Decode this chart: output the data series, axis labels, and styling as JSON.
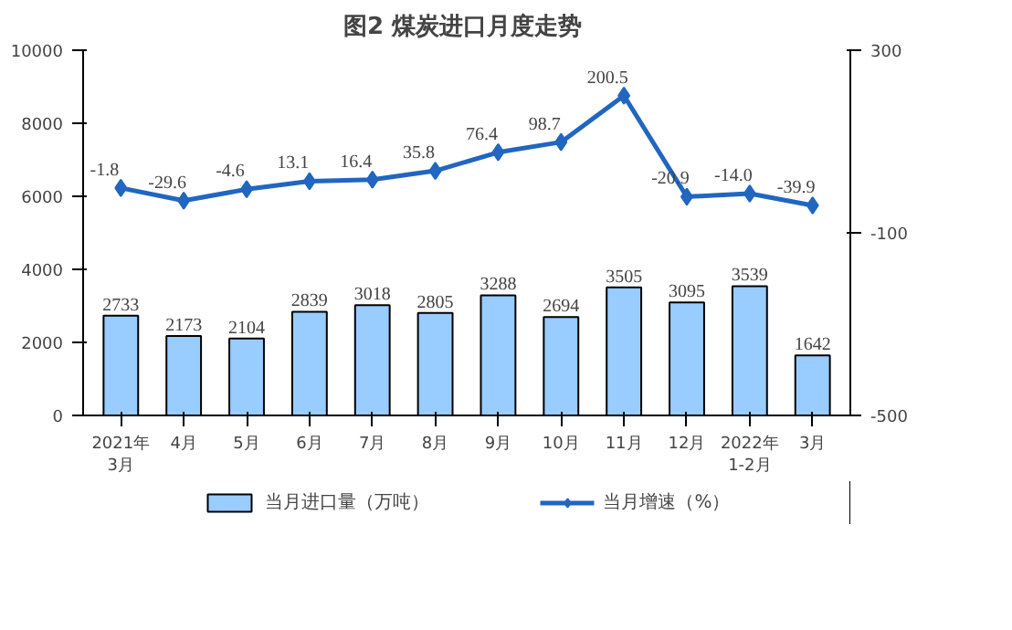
{
  "chart_data": {
    "type": "bar",
    "title": "图2  煤炭进口月度走势",
    "categories": [
      "2021年\n3月",
      "4月",
      "5月",
      "6月",
      "7月",
      "8月",
      "9月",
      "10月",
      "11月",
      "12月",
      "2022年\n1-2月",
      "3月"
    ],
    "series": [
      {
        "name": "当月进口量（万吨）",
        "color": "#99ccff",
        "values": [
          2733,
          2173,
          2104,
          2839,
          3018,
          2805,
          3288,
          2694,
          3505,
          3095,
          3539,
          1642
        ]
      },
      {
        "name": "当月增速（%）",
        "type": "line",
        "axis": "y2",
        "color": "#2166c0",
        "marker": "diamond",
        "line_style": "solid",
        "values": [
          -1.8,
          -29.6,
          -4.6,
          13.1,
          16.4,
          35.8,
          76.4,
          98.7,
          200.5,
          -20.9,
          -14.0,
          -39.9
        ],
        "value_labels": [
          "-1.8",
          "-29.6",
          "-4.6",
          "13.1",
          "16.4",
          "35.8",
          "76.4",
          "98.7",
          "200.5",
          "-20.9",
          "-14.0",
          "-39.9"
        ]
      }
    ],
    "ylim": [
      0,
      10000
    ],
    "yticks": [
      0,
      2000,
      4000,
      6000,
      8000,
      10000
    ],
    "y2lim": [
      -500,
      300
    ],
    "y2ticks": [
      -500,
      -100,
      300
    ],
    "data_labels": true,
    "legend": "bottom"
  }
}
